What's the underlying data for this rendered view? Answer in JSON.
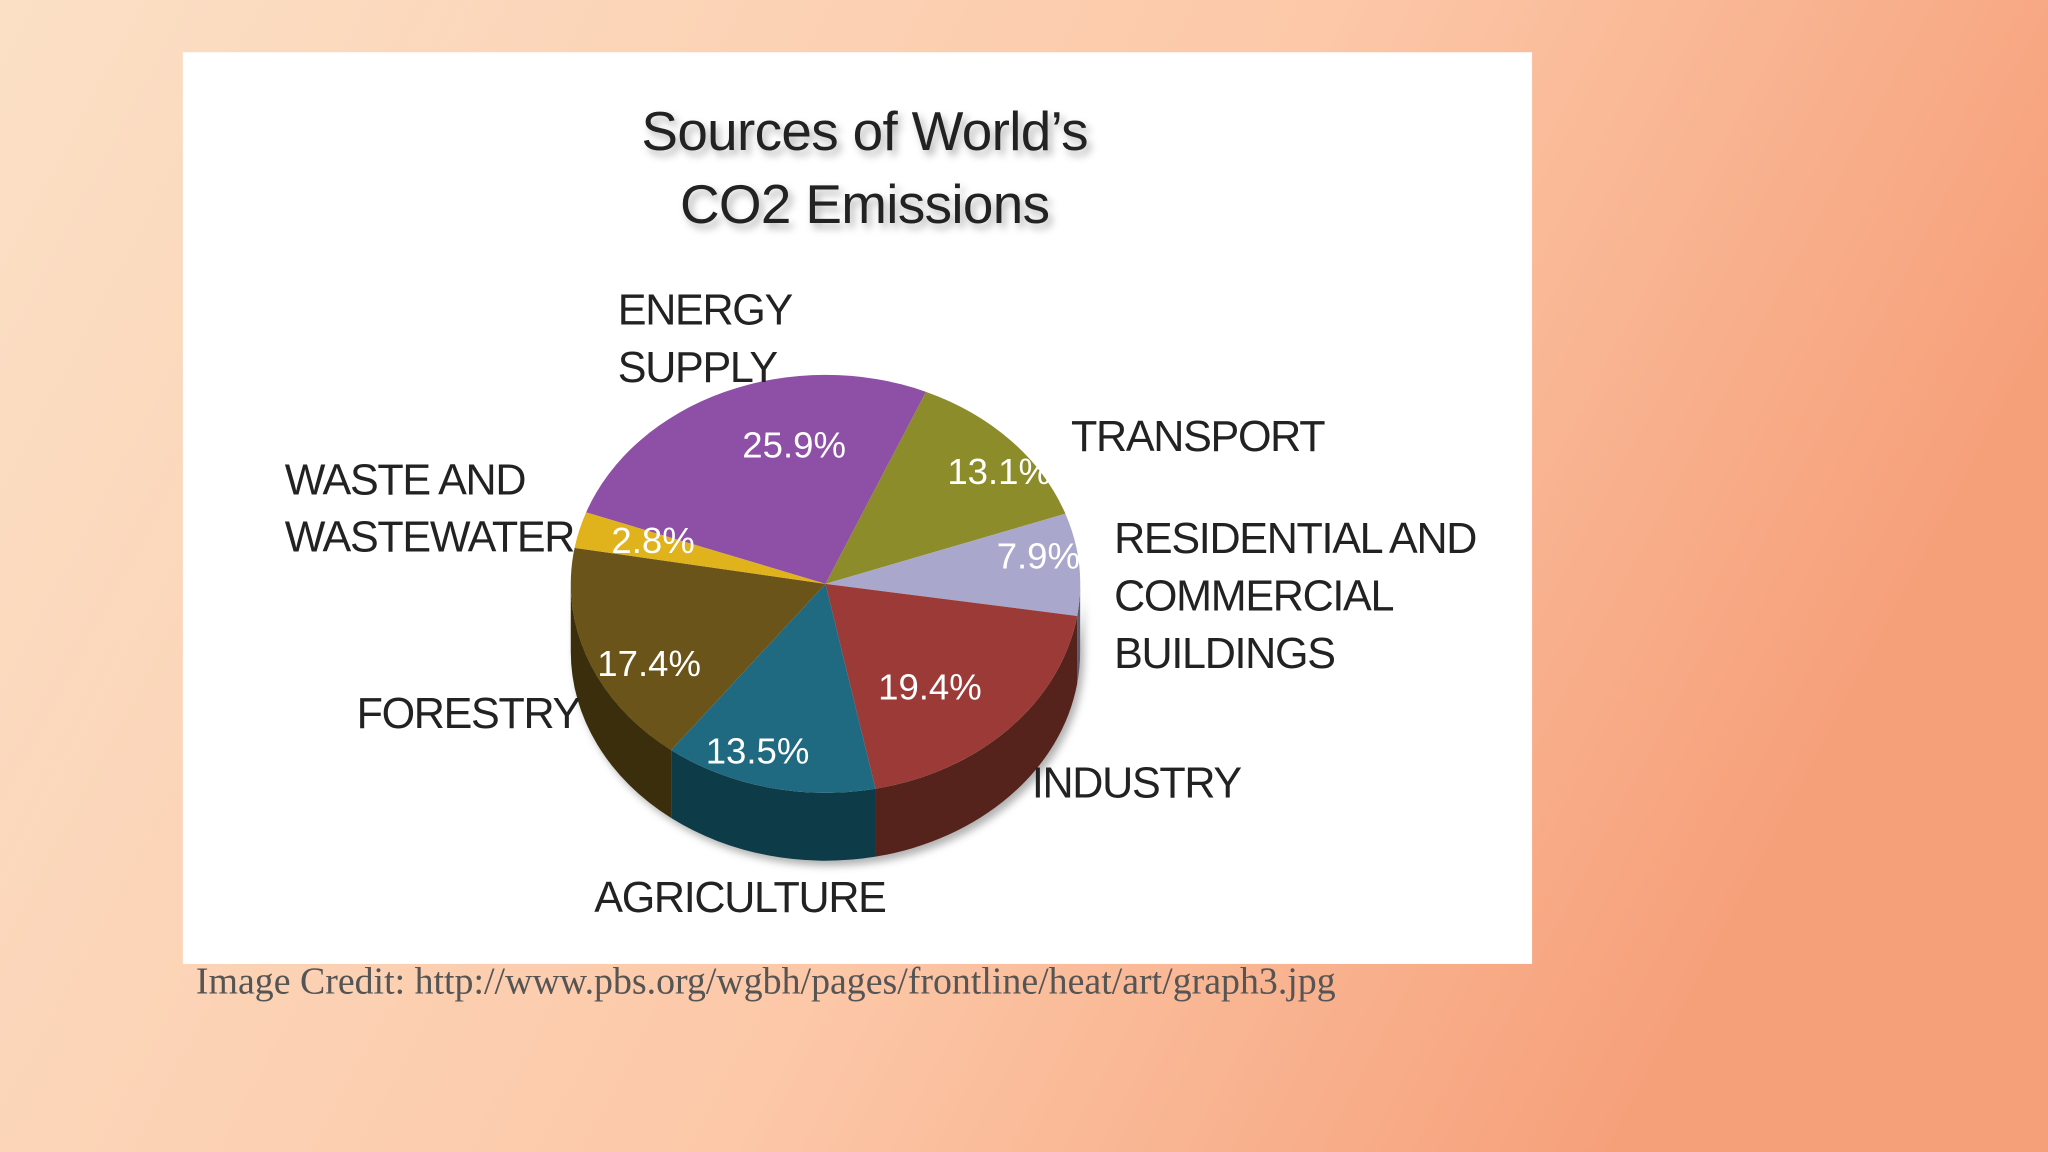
{
  "chart_data": {
    "type": "pie",
    "title": "Sources of World’s CO2 Emissions",
    "categories": [
      "ENERGY SUPPLY",
      "TRANSPORT",
      "RESIDENTIAL AND COMMERCIAL BUILDINGS",
      "INDUSTRY",
      "AGRICULTURE",
      "FORESTRY",
      "WASTE AND WASTEWATER"
    ],
    "values": [
      25.9,
      13.1,
      7.9,
      19.4,
      13.5,
      17.4,
      2.8
    ],
    "value_labels": [
      "25.9%",
      "13.1%",
      "7.9%",
      "19.4%",
      "13.5%",
      "17.4%",
      "2.8%"
    ],
    "colors": [
      "#8e4fa6",
      "#8c8c2a",
      "#a9a8cc",
      "#9b3a36",
      "#1f6a80",
      "#6b5419",
      "#e0b21c"
    ]
  },
  "caption": "Image Credit: http://www.pbs.org/wgbh/pages/frontline/heat/art/graph3.jpg"
}
